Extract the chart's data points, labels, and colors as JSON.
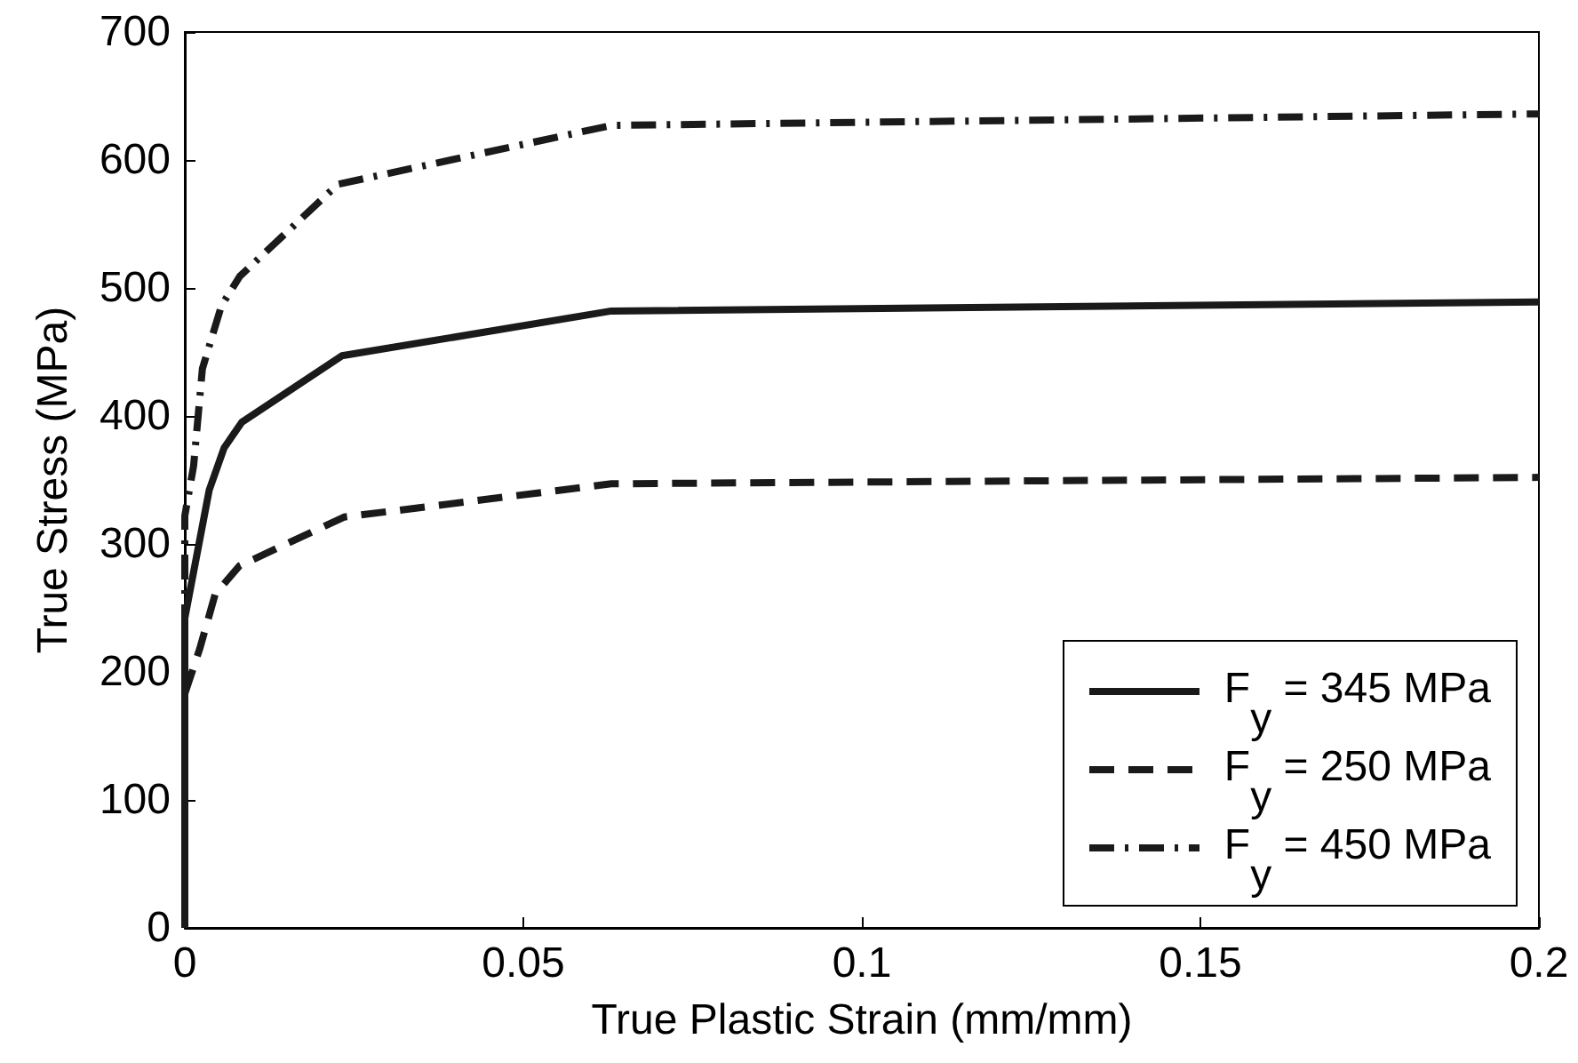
{
  "chart_data": {
    "type": "line",
    "xlabel": "True Plastic Strain (mm/mm)",
    "ylabel": "True Stress (MPa)",
    "xlim": [
      0,
      0.2
    ],
    "xticks": [
      0,
      0.05,
      0.1,
      0.15,
      0.2
    ],
    "ylim": [
      0,
      700
    ],
    "yticks": [
      0,
      100,
      200,
      300,
      400,
      500,
      600,
      700
    ],
    "grid": false,
    "legend": "bottom right",
    "marker": "none",
    "series": [
      {
        "name": "F$_{y}$ = 345 MPa",
        "color": "#1a1a1a",
        "line_style": "solid",
        "x": [
          0,
          0,
          0.0036,
          0.0058,
          0.0084,
          0.0232,
          0.063,
          0.2
        ],
        "values": [
          0,
          242,
          342,
          375,
          395,
          447,
          482,
          489
        ]
      },
      {
        "name": "F$_{y}$ = 250 MPa",
        "color": "#1a1a1a",
        "line_style": "dashed",
        "x": [
          0,
          0,
          0.0022,
          0.0045,
          0.0081,
          0.0235,
          0.063,
          0.2
        ],
        "values": [
          0,
          183,
          218,
          261,
          283,
          321,
          347,
          352
        ]
      },
      {
        "name": "F$_{y}$ = 450 MPa",
        "color": "#1a1a1a",
        "line_style": "dashdot",
        "x": [
          0,
          0,
          0.0013,
          0.0026,
          0.0054,
          0.0081,
          0.0226,
          0.063,
          0.2
        ],
        "values": [
          0,
          322,
          361,
          437,
          486,
          509,
          581,
          627,
          636
        ]
      }
    ]
  }
}
